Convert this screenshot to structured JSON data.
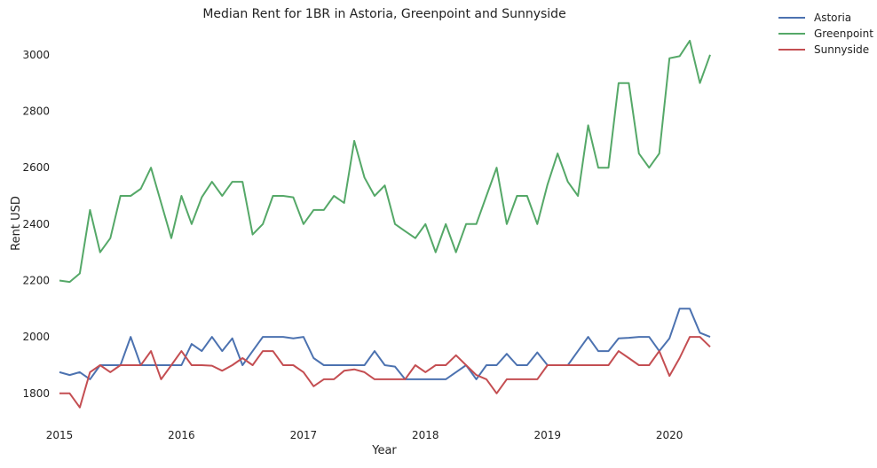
{
  "chart_data": {
    "type": "line",
    "title": "Median Rent for 1BR in Astoria, Greenpoint and Sunnyside",
    "xlabel": "Year",
    "ylabel": "Rent USD",
    "x_tick_labels": [
      "2015",
      "2016",
      "2017",
      "2018",
      "2019",
      "2020"
    ],
    "y_tick_labels": [
      "1800",
      "2000",
      "2200",
      "2400",
      "2600",
      "2800",
      "3000"
    ],
    "x_start": "2015-01",
    "xlim": [
      "2015-01",
      "2020-05"
    ],
    "ylim": [
      1680,
      3100
    ],
    "grid": false,
    "legend_position": "outside top-right",
    "series": [
      {
        "name": "Astoria",
        "color": "#4c72b0",
        "values": [
          1875,
          1865,
          1875,
          1850,
          1900,
          1900,
          1900,
          2000,
          1900,
          1900,
          1900,
          1900,
          1900,
          1975,
          1950,
          2000,
          1950,
          1995,
          1900,
          1950,
          2000,
          2000,
          2000,
          1995,
          2000,
          1925,
          1900,
          1900,
          1900,
          1900,
          1900,
          1950,
          1900,
          1895,
          1850,
          1850,
          1850,
          1850,
          1850,
          1875,
          1900,
          1850,
          1900,
          1900,
          1940,
          1900,
          1900,
          1945,
          1900,
          1900,
          1900,
          1950,
          2000,
          1950,
          1950,
          1995,
          1997,
          2000,
          2000,
          1950,
          1995,
          2100,
          2100,
          2015,
          2000
        ]
      },
      {
        "name": "Greenpoint",
        "color": "#55a868",
        "values": [
          2200,
          2195,
          2225,
          2450,
          2300,
          2350,
          2500,
          2500,
          2525,
          2600,
          2475,
          2350,
          2500,
          2400,
          2495,
          2550,
          2500,
          2550,
          2550,
          2363,
          2400,
          2500,
          2500,
          2495,
          2400,
          2450,
          2450,
          2500,
          2475,
          2695,
          2565,
          2500,
          2537,
          2400,
          2375,
          2350,
          2400,
          2300,
          2400,
          2300,
          2400,
          2400,
          2500,
          2600,
          2400,
          2500,
          2500,
          2400,
          2540,
          2650,
          2550,
          2500,
          2750,
          2600,
          2600,
          2900,
          2900,
          2650,
          2600,
          2650,
          2988,
          2995,
          3050,
          2900,
          3000
        ]
      },
      {
        "name": "Sunnyside",
        "color": "#c44e52",
        "values": [
          1800,
          1800,
          1750,
          1875,
          1900,
          1875,
          1900,
          1900,
          1900,
          1950,
          1850,
          1900,
          1950,
          1900,
          1900,
          1898,
          1880,
          1900,
          1925,
          1900,
          1950,
          1950,
          1900,
          1900,
          1875,
          1825,
          1850,
          1850,
          1880,
          1885,
          1875,
          1850,
          1850,
          1850,
          1850,
          1900,
          1875,
          1900,
          1900,
          1935,
          1900,
          1865,
          1850,
          1800,
          1850,
          1850,
          1850,
          1850,
          1900,
          1900,
          1900,
          1900,
          1900,
          1900,
          1900,
          1950,
          1925,
          1900,
          1900,
          1950,
          1862,
          1925,
          2000,
          2000,
          1965
        ]
      }
    ]
  }
}
